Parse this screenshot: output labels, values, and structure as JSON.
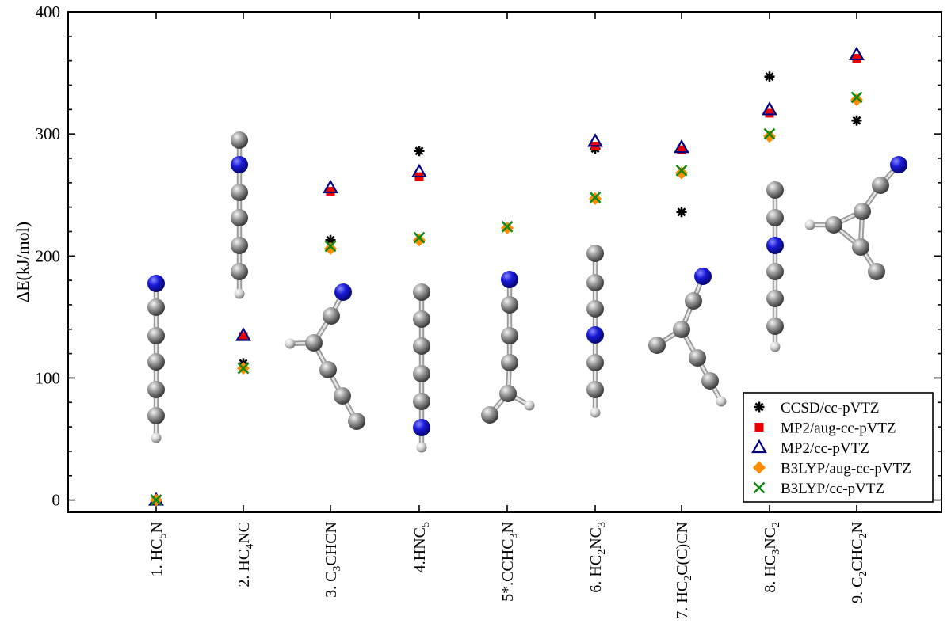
{
  "chart_data": {
    "type": "scatter",
    "title": "",
    "ylabel": "ΔE(kJ/mol)",
    "xlabel": "",
    "ylim": [
      -10,
      400
    ],
    "yticks": [
      0,
      100,
      200,
      300,
      400
    ],
    "grid": false,
    "legend_position": "bottom-right",
    "categories": [
      {
        "parts": [
          {
            "t": "1. HC"
          },
          {
            "t": "5",
            "sub": true
          },
          {
            "t": "N"
          }
        ]
      },
      {
        "parts": [
          {
            "t": "2. HC"
          },
          {
            "t": "4",
            "sub": true
          },
          {
            "t": "NC"
          }
        ]
      },
      {
        "parts": [
          {
            "t": "3. C"
          },
          {
            "t": "3",
            "sub": true
          },
          {
            "t": "CHCN"
          }
        ]
      },
      {
        "parts": [
          {
            "t": "4.HNC"
          },
          {
            "t": "5",
            "sub": true
          }
        ]
      },
      {
        "parts": [
          {
            "t": "5*.CCHC"
          },
          {
            "t": "3",
            "sub": true
          },
          {
            "t": "N"
          }
        ]
      },
      {
        "parts": [
          {
            "t": "6. HC"
          },
          {
            "t": "2",
            "sub": true
          },
          {
            "t": "NC"
          },
          {
            "t": "3",
            "sub": true
          }
        ]
      },
      {
        "parts": [
          {
            "t": "7. HC"
          },
          {
            "t": "2",
            "sub": true
          },
          {
            "t": "C(C)CN"
          }
        ]
      },
      {
        "parts": [
          {
            "t": "8. HC"
          },
          {
            "t": "3",
            "sub": true
          },
          {
            "t": "NC"
          },
          {
            "t": "2",
            "sub": true
          }
        ]
      },
      {
        "parts": [
          {
            "t": "9. C"
          },
          {
            "t": "2",
            "sub": true
          },
          {
            "t": "CHC"
          },
          {
            "t": "2",
            "sub": true
          },
          {
            "t": "N"
          }
        ]
      }
    ],
    "series": [
      {
        "name": "CCSD/cc-pVTZ",
        "marker": "asterisk",
        "color": "#000000",
        "values": [
          0,
          112,
          213,
          286,
          null,
          288,
          236,
          347,
          311
        ]
      },
      {
        "name": "MP2/aug-cc-pVTZ",
        "marker": "square",
        "color": "#ee0000",
        "values": [
          0,
          134,
          253,
          265,
          null,
          290,
          287,
          317,
          362
        ]
      },
      {
        "name": "MP2/cc-pVTZ",
        "marker": "triangle",
        "color": "#000080",
        "values": [
          0,
          135,
          256,
          269,
          null,
          294,
          289,
          320,
          365
        ]
      },
      {
        "name": "B3LYP/aug-cc-pVTZ",
        "marker": "diamond",
        "color": "#ff8c00",
        "values": [
          0,
          108,
          206,
          213,
          223,
          247,
          268,
          298,
          328
        ]
      },
      {
        "name": "B3LYP/cc-pVTZ",
        "marker": "x",
        "color": "#118811",
        "values": [
          0,
          108,
          208,
          215,
          224,
          248,
          270,
          300,
          330
        ]
      }
    ]
  }
}
